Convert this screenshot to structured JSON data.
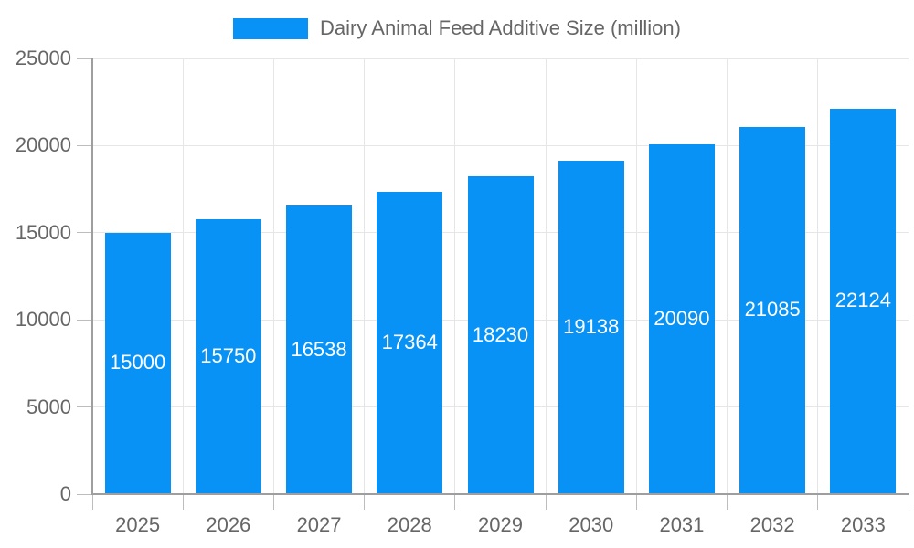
{
  "legend": {
    "label": "Dairy Animal Feed Additive Size (million)"
  },
  "chart_data": {
    "type": "bar",
    "title": "Dairy Animal Feed Additive Size (million)",
    "categories": [
      "2025",
      "2026",
      "2027",
      "2028",
      "2029",
      "2030",
      "2031",
      "2032",
      "2033"
    ],
    "values": [
      15000,
      15750,
      16538,
      17364,
      18230,
      19138,
      20090,
      21085,
      22124
    ],
    "bar_labels": [
      "15000",
      "15750",
      "16538",
      "17364",
      "18230",
      "19138",
      "20090",
      "21085",
      "22124"
    ],
    "xlabel": "",
    "ylabel": "",
    "ylim": [
      0,
      25000
    ],
    "yticks": [
      0,
      5000,
      10000,
      15000,
      20000,
      25000
    ],
    "ytick_labels": [
      "0",
      "5000",
      "10000",
      "15000",
      "20000",
      "25000"
    ],
    "grid": true,
    "legend_position": "top-center",
    "colors": {
      "bar": "#0892f5",
      "bar_label_text": "#ffffff",
      "axis_text": "#666666",
      "gridline": "#e6e6e6",
      "axis_line": "#9e9e9e",
      "tick_line": "#bdbdbd"
    }
  }
}
